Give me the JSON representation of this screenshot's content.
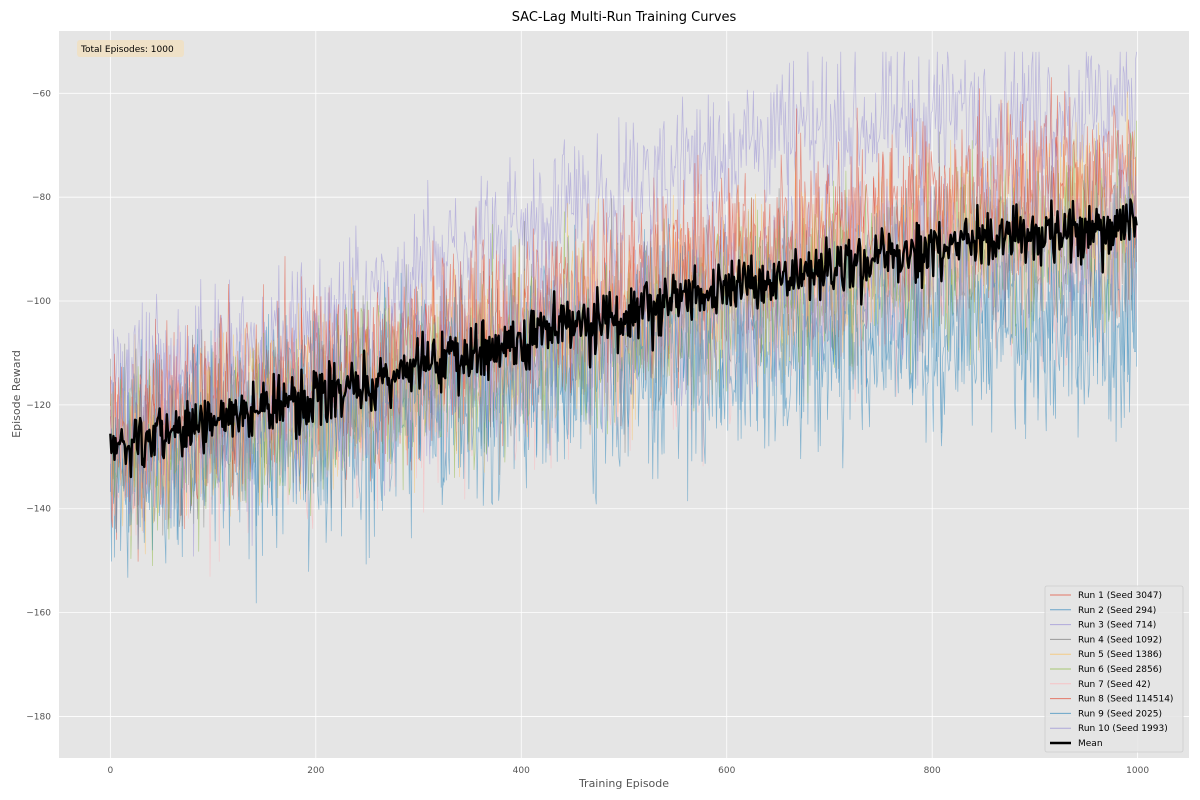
{
  "chart_data": {
    "type": "line",
    "title": "SAC-Lag Multi-Run Training Curves",
    "xlabel": "Training Episode",
    "ylabel": "Episode Reward",
    "xlim": [
      -50,
      1050
    ],
    "ylim": [
      -188,
      -48
    ],
    "xticks": [
      0,
      200,
      400,
      600,
      800,
      1000
    ],
    "yticks": [
      -180,
      -160,
      -140,
      -120,
      -100,
      -80,
      -60
    ],
    "grid": true,
    "legend_position": "bottom-right",
    "annotation": "Total Episodes: 1000",
    "episodes": 1000,
    "series": [
      {
        "name": "Run 1 (Seed 3047)",
        "color": "#E24A33",
        "trend": [
          [
            0,
            -128
          ],
          [
            200,
            -117
          ],
          [
            400,
            -106
          ],
          [
            600,
            -95
          ],
          [
            800,
            -86
          ],
          [
            1000,
            -80
          ]
        ],
        "noise": 13
      },
      {
        "name": "Run 2 (Seed 294)",
        "color": "#348ABD",
        "trend": [
          [
            0,
            -130
          ],
          [
            200,
            -122
          ],
          [
            400,
            -115
          ],
          [
            600,
            -108
          ],
          [
            800,
            -104
          ],
          [
            1000,
            -100
          ]
        ],
        "noise": 14
      },
      {
        "name": "Run 3 (Seed 714)",
        "color": "#988ED5",
        "trend": [
          [
            0,
            -118
          ],
          [
            200,
            -104
          ],
          [
            400,
            -86
          ],
          [
            600,
            -70
          ],
          [
            800,
            -64
          ],
          [
            1000,
            -62
          ]
        ],
        "noise": 10
      },
      {
        "name": "Run 4 (Seed 1092)",
        "color": "#777777",
        "trend": [
          [
            0,
            -128
          ],
          [
            200,
            -119
          ],
          [
            400,
            -110
          ],
          [
            600,
            -100
          ],
          [
            800,
            -92
          ],
          [
            1000,
            -86
          ]
        ],
        "noise": 13
      },
      {
        "name": "Run 5 (Seed 1386)",
        "color": "#FBC15E",
        "trend": [
          [
            0,
            -130
          ],
          [
            200,
            -119
          ],
          [
            400,
            -108
          ],
          [
            600,
            -97
          ],
          [
            800,
            -88
          ],
          [
            1000,
            -82
          ]
        ],
        "noise": 13
      },
      {
        "name": "Run 6 (Seed 2856)",
        "color": "#8EBA42",
        "trend": [
          [
            0,
            -132
          ],
          [
            200,
            -121
          ],
          [
            400,
            -110
          ],
          [
            600,
            -100
          ],
          [
            800,
            -92
          ],
          [
            1000,
            -85
          ]
        ],
        "noise": 13
      },
      {
        "name": "Run 7 (Seed 42)",
        "color": "#FFB5B8",
        "trend": [
          [
            0,
            -132
          ],
          [
            200,
            -122
          ],
          [
            400,
            -113
          ],
          [
            600,
            -104
          ],
          [
            800,
            -96
          ],
          [
            1000,
            -90
          ]
        ],
        "noise": 13
      },
      {
        "name": "Run 8 (Seed 114514)",
        "color": "#E24A33",
        "trend": [
          [
            0,
            -126
          ],
          [
            200,
            -114
          ],
          [
            400,
            -102
          ],
          [
            600,
            -90
          ],
          [
            800,
            -80
          ],
          [
            1000,
            -74
          ]
        ],
        "noise": 12
      },
      {
        "name": "Run 9 (Seed 2025)",
        "color": "#348ABD",
        "trend": [
          [
            0,
            -132
          ],
          [
            200,
            -124
          ],
          [
            400,
            -116
          ],
          [
            600,
            -110
          ],
          [
            800,
            -105
          ],
          [
            1000,
            -102
          ]
        ],
        "noise": 15
      },
      {
        "name": "Run 10 (Seed 1993)",
        "color": "#988ED5",
        "trend": [
          [
            0,
            -128
          ],
          [
            200,
            -118
          ],
          [
            400,
            -108
          ],
          [
            600,
            -98
          ],
          [
            800,
            -90
          ],
          [
            1000,
            -84
          ]
        ],
        "noise": 13
      }
    ],
    "mean": {
      "name": "Mean",
      "color": "#000000"
    }
  }
}
